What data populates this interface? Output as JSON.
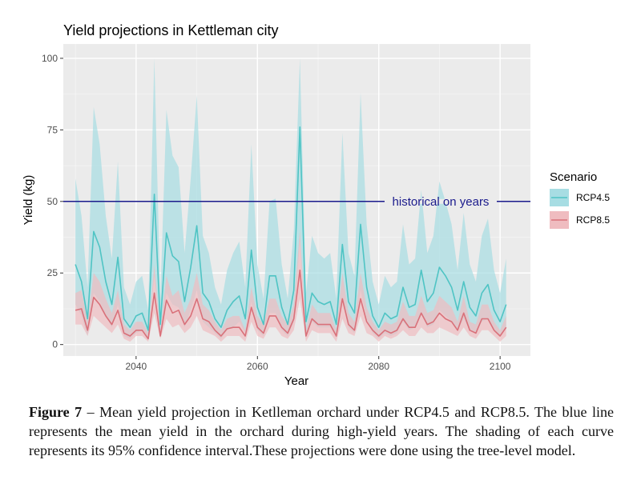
{
  "chart_data": {
    "type": "line",
    "title": "Yield projections in Kettleman city",
    "xlabel": "Year",
    "ylabel": "Yield (kg)",
    "xlim": [
      2028,
      2105
    ],
    "ylim": [
      -4,
      105
    ],
    "x_ticks": [
      2040,
      2060,
      2080,
      2100
    ],
    "y_ticks": [
      0,
      25,
      50,
      75,
      100
    ],
    "grid": true,
    "legend": {
      "title": "Scenario",
      "position": "right"
    },
    "reference_line": {
      "y": 50,
      "label": "historical on years",
      "color": "#1a1a8c"
    },
    "x": [
      2030,
      2031,
      2032,
      2033,
      2034,
      2035,
      2036,
      2037,
      2038,
      2039,
      2040,
      2041,
      2042,
      2043,
      2044,
      2045,
      2046,
      2047,
      2048,
      2049,
      2050,
      2051,
      2052,
      2053,
      2054,
      2055,
      2056,
      2057,
      2058,
      2059,
      2060,
      2061,
      2062,
      2063,
      2064,
      2065,
      2066,
      2067,
      2068,
      2069,
      2070,
      2071,
      2072,
      2073,
      2074,
      2075,
      2076,
      2077,
      2078,
      2079,
      2080,
      2081,
      2082,
      2083,
      2084,
      2085,
      2086,
      2087,
      2088,
      2089,
      2090,
      2091,
      2092,
      2093,
      2094,
      2095,
      2096,
      2097,
      2098,
      2099,
      2100,
      2101
    ],
    "series": [
      {
        "name": "RCP4.5",
        "color": "#4fc4c4",
        "band_color": "#a7dde3",
        "values": [
          28,
          22,
          9,
          39.5,
          34,
          22,
          14,
          30.5,
          9,
          6,
          10,
          11,
          5,
          52.5,
          7,
          39,
          31,
          29,
          15,
          27,
          41.5,
          18,
          15,
          9,
          6,
          12,
          15,
          17,
          9,
          33,
          13,
          7,
          24,
          24,
          13,
          7,
          19,
          76,
          8,
          18,
          15,
          14,
          15,
          7,
          35,
          15,
          11,
          42,
          20,
          10,
          6,
          11,
          9,
          10,
          20,
          13,
          14,
          26,
          15,
          18,
          27,
          24,
          20,
          12,
          22,
          13,
          10,
          18,
          21,
          12,
          8,
          14
        ],
        "lower": [
          14,
          10,
          3,
          18,
          15,
          10,
          6,
          14,
          3,
          2,
          4,
          5,
          2,
          24,
          3,
          18,
          14,
          13,
          6,
          12,
          19,
          8,
          6,
          4,
          2,
          5,
          6,
          8,
          4,
          15,
          5,
          3,
          11,
          11,
          5,
          3,
          8,
          36,
          3,
          8,
          6,
          6,
          6,
          3,
          16,
          6,
          4,
          19,
          9,
          4,
          2,
          4,
          3,
          4,
          8,
          5,
          6,
          11,
          6,
          7,
          12,
          10,
          8,
          5,
          9,
          5,
          4,
          8,
          9,
          5,
          3,
          6
        ],
        "upper": [
          58,
          45,
          20,
          83,
          70,
          45,
          30,
          64,
          20,
          14,
          22,
          24,
          12,
          100,
          16,
          82,
          66,
          62,
          32,
          58,
          87,
          38,
          32,
          20,
          14,
          26,
          32,
          36,
          20,
          70,
          28,
          16,
          50,
          51,
          28,
          16,
          40,
          100,
          18,
          38,
          32,
          30,
          32,
          16,
          74,
          32,
          24,
          88,
          42,
          22,
          14,
          24,
          20,
          22,
          42,
          28,
          30,
          54,
          32,
          38,
          57,
          50,
          42,
          26,
          46,
          28,
          22,
          38,
          44,
          26,
          18,
          30
        ]
      },
      {
        "name": "RCP8.5",
        "color": "#d9717a",
        "band_color": "#efbcc0",
        "values": [
          12,
          12.5,
          5,
          16.5,
          14,
          10,
          7,
          12,
          4,
          3,
          5,
          5,
          2,
          18,
          3,
          15.5,
          11,
          12,
          7,
          10,
          16,
          9,
          8,
          5,
          3,
          5.5,
          6,
          6,
          3,
          13,
          6,
          4,
          10,
          10,
          6,
          4,
          9,
          26,
          3,
          9,
          7,
          7,
          7,
          3,
          16,
          7,
          5,
          16,
          8,
          5,
          3,
          5,
          4,
          5,
          9,
          6,
          6,
          11,
          7,
          8,
          11,
          9,
          8,
          5,
          11,
          5,
          4,
          9,
          9,
          5,
          3,
          6
        ],
        "lower": [
          7,
          7,
          3,
          10,
          8,
          6,
          4,
          7,
          2,
          1,
          3,
          3,
          1,
          11,
          2,
          9,
          6,
          7,
          4,
          6,
          10,
          5,
          4,
          3,
          1,
          3,
          3,
          3,
          1,
          8,
          3,
          2,
          6,
          6,
          3,
          2,
          5,
          16,
          1,
          5,
          4,
          4,
          4,
          1,
          9,
          4,
          3,
          10,
          4,
          3,
          1,
          3,
          2,
          3,
          5,
          3,
          3,
          6,
          4,
          4,
          6,
          5,
          4,
          3,
          6,
          3,
          2,
          5,
          5,
          3,
          1,
          3
        ],
        "upper": [
          18,
          19,
          8,
          25,
          22,
          16,
          11,
          19,
          7,
          5,
          8,
          8,
          4,
          28,
          5,
          24,
          17,
          19,
          11,
          16,
          25,
          14,
          12,
          8,
          5,
          9,
          10,
          10,
          5,
          20,
          10,
          7,
          16,
          16,
          10,
          7,
          14,
          40,
          5,
          14,
          11,
          11,
          11,
          5,
          25,
          11,
          8,
          25,
          13,
          8,
          5,
          8,
          7,
          8,
          15,
          10,
          10,
          17,
          11,
          12,
          17,
          15,
          13,
          8,
          17,
          8,
          7,
          14,
          14,
          8,
          5,
          10
        ]
      }
    ]
  },
  "caption": {
    "label": "Figure 7",
    "text": " – Mean yield projection in Ketlleman orchard under RCP4.5 and RCP8.5. The blue line represents the mean yield in the orchard during high-yield years. The shading of each curve represents its 95% confidence interval.These projections were done using the tree-level model."
  }
}
